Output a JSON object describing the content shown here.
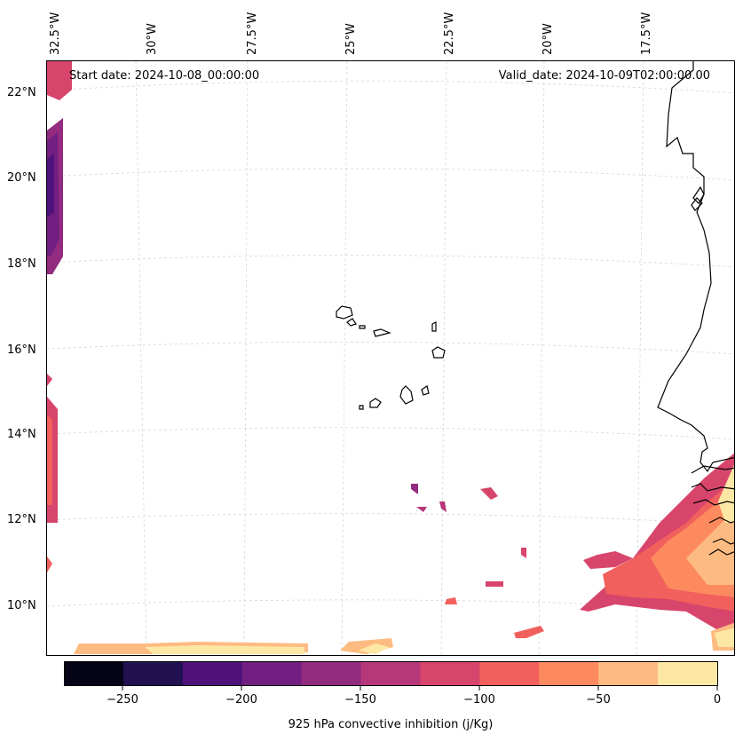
{
  "map": {
    "start_date": "Start date: 2024-10-08_00:00:00",
    "valid_date": "Valid_date: 2024-10-09T02:00:00.00",
    "lon_ticks": [
      "32.5°W",
      "30°W",
      "27.5°W",
      "25°W",
      "22.5°W",
      "20°W",
      "17.5°W"
    ],
    "lat_ticks": [
      "22°N",
      "20°N",
      "18°N",
      "16°N",
      "14°N",
      "12°N",
      "10°N"
    ],
    "variable": "925 hPa convective inhibition (j/Kg)"
  },
  "colorbar": {
    "label": "925 hPa convective inhibition (j/Kg)",
    "ticks": [
      "−250",
      "−200",
      "−150",
      "−100",
      "−50",
      "0"
    ],
    "levels": [
      -275,
      -250,
      -225,
      -200,
      -175,
      -150,
      -125,
      -100,
      -75,
      -50,
      -25,
      0
    ],
    "colors": [
      "#050416",
      "#221150",
      "#4f127b",
      "#721f81",
      "#932b80",
      "#b6377a",
      "#d8456c",
      "#f1605d",
      "#fd8a5f",
      "#febb81",
      "#fde7a5"
    ]
  }
}
